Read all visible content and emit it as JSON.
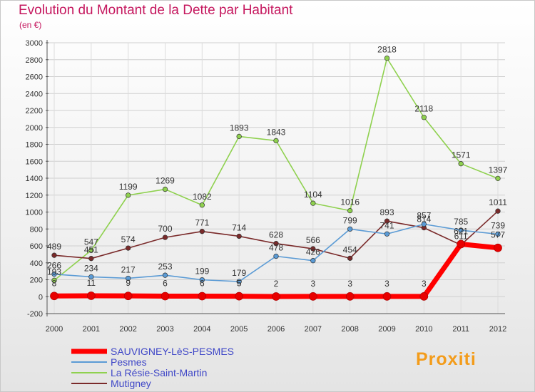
{
  "chart_data": {
    "type": "line",
    "title": "Evolution du Montant de la Dette par Habitant",
    "subtitle": "(en €)",
    "x": [
      "2000",
      "2001",
      "2002",
      "2003",
      "2004",
      "2005",
      "2006",
      "2007",
      "2008",
      "2009",
      "2010",
      "2011",
      "2012"
    ],
    "ylim": [
      -200,
      3000
    ],
    "yticks": [
      -200,
      0,
      200,
      400,
      600,
      800,
      1000,
      1200,
      1400,
      1600,
      1800,
      2000,
      2200,
      2400,
      2600,
      2800,
      3000
    ],
    "grid": "horizontal",
    "legend_position": "bottom-left",
    "series": [
      {
        "name": "SAUVIGNEY-LèS-PESMES",
        "color": "#ff0000",
        "values": [
          8,
          11,
          9,
          6,
          6,
          5,
          2,
          3,
          3,
          3,
          3,
          621,
          577
        ],
        "labels": [
          "8",
          "11",
          "9",
          "6",
          "6",
          "5",
          "2",
          "3",
          "3",
          "3",
          "3",
          "621",
          "577"
        ]
      },
      {
        "name": "Pesmes",
        "color": "#5b9bd5",
        "values": [
          266,
          234,
          217,
          253,
          199,
          179,
          478,
          426,
          799,
          741,
          857,
          785,
          739
        ],
        "labels": [
          "266",
          "234",
          "217",
          "253",
          "199",
          "179",
          "478",
          "426",
          "799",
          "741",
          "857",
          "785",
          "739"
        ]
      },
      {
        "name": "La Résie-Saint-Martin",
        "color": "#8fd14f",
        "values": [
          193,
          547,
          1199,
          1269,
          1082,
          1893,
          1843,
          1104,
          1016,
          2818,
          2118,
          1571,
          1397
        ],
        "labels": [
          "193",
          "547",
          "1199",
          "1269",
          "1082",
          "1893",
          "1843",
          "1104",
          "1016",
          "2818",
          "2118",
          "1571",
          "1397"
        ]
      },
      {
        "name": "Mutigney",
        "color": "#7a2a2a",
        "values": [
          489,
          451,
          574,
          700,
          771,
          714,
          628,
          566,
          454,
          893,
          814,
          611,
          1011
        ],
        "labels": [
          "489",
          "451",
          "574",
          "700",
          "771",
          "714",
          "628",
          "566",
          "454",
          "893",
          "814",
          "611",
          "1011"
        ]
      }
    ]
  },
  "branding": {
    "logo_text": "Proxiti"
  }
}
